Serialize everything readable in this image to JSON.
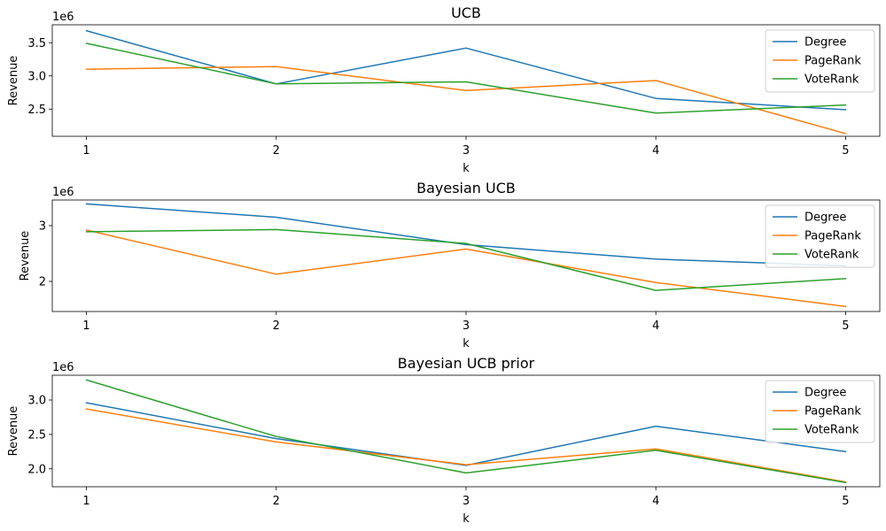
{
  "chart_data": [
    {
      "type": "line",
      "title": "UCB",
      "xlabel": "k",
      "ylabel": "Revenue",
      "y_offset_label": "1e6",
      "x": [
        1,
        2,
        3,
        4,
        5
      ],
      "xticks": [
        "1",
        "2",
        "3",
        "4",
        "5"
      ],
      "ylim": [
        2.09,
        3.77
      ],
      "yticks": [
        {
          "value": 2.5,
          "label": "2.5"
        },
        {
          "value": 3.0,
          "label": "3.0"
        },
        {
          "value": 3.5,
          "label": "3.5"
        }
      ],
      "legend": "top-right",
      "grid": false,
      "series": [
        {
          "name": "Degree",
          "color": "#1f77b4",
          "values": [
            3.68,
            2.88,
            3.42,
            2.66,
            2.49
          ]
        },
        {
          "name": "PageRank",
          "color": "#ff7f0e",
          "values": [
            3.1,
            3.14,
            2.78,
            2.93,
            2.13
          ]
        },
        {
          "name": "VoteRank",
          "color": "#2ca02c",
          "values": [
            3.49,
            2.88,
            2.91,
            2.44,
            2.56
          ]
        }
      ]
    },
    {
      "type": "line",
      "title": "Bayesian UCB",
      "xlabel": "k",
      "ylabel": "Revenue",
      "y_offset_label": "1e6",
      "x": [
        1,
        2,
        3,
        4,
        5
      ],
      "xticks": [
        "1",
        "2",
        "3",
        "4",
        "5"
      ],
      "ylim": [
        1.46,
        3.46
      ],
      "yticks": [
        {
          "value": 2,
          "label": "2"
        },
        {
          "value": 3,
          "label": "3"
        }
      ],
      "legend": "top-right",
      "grid": false,
      "series": [
        {
          "name": "Degree",
          "color": "#1f77b4",
          "values": [
            3.39,
            3.15,
            2.66,
            2.4,
            2.28
          ]
        },
        {
          "name": "PageRank",
          "color": "#ff7f0e",
          "values": [
            2.92,
            2.13,
            2.58,
            1.98,
            1.55
          ]
        },
        {
          "name": "VoteRank",
          "color": "#2ca02c",
          "values": [
            2.89,
            2.93,
            2.68,
            1.84,
            2.05
          ]
        }
      ]
    },
    {
      "type": "line",
      "title": "Bayesian UCB prior",
      "xlabel": "k",
      "ylabel": "Revenue",
      "y_offset_label": "1e6",
      "x": [
        1,
        2,
        3,
        4,
        5
      ],
      "xticks": [
        "1",
        "2",
        "3",
        "4",
        "5"
      ],
      "ylim": [
        1.74,
        3.36
      ],
      "yticks": [
        {
          "value": 2.0,
          "label": "2.0"
        },
        {
          "value": 2.5,
          "label": "2.5"
        },
        {
          "value": 3.0,
          "label": "3.0"
        }
      ],
      "legend": "top-right",
      "grid": false,
      "series": [
        {
          "name": "Degree",
          "color": "#1f77b4",
          "values": [
            2.96,
            2.44,
            2.05,
            2.62,
            2.25
          ]
        },
        {
          "name": "PageRank",
          "color": "#ff7f0e",
          "values": [
            2.87,
            2.39,
            2.06,
            2.29,
            1.81
          ]
        },
        {
          "name": "VoteRank",
          "color": "#2ca02c",
          "values": [
            3.29,
            2.47,
            1.94,
            2.27,
            1.8
          ]
        }
      ]
    }
  ]
}
